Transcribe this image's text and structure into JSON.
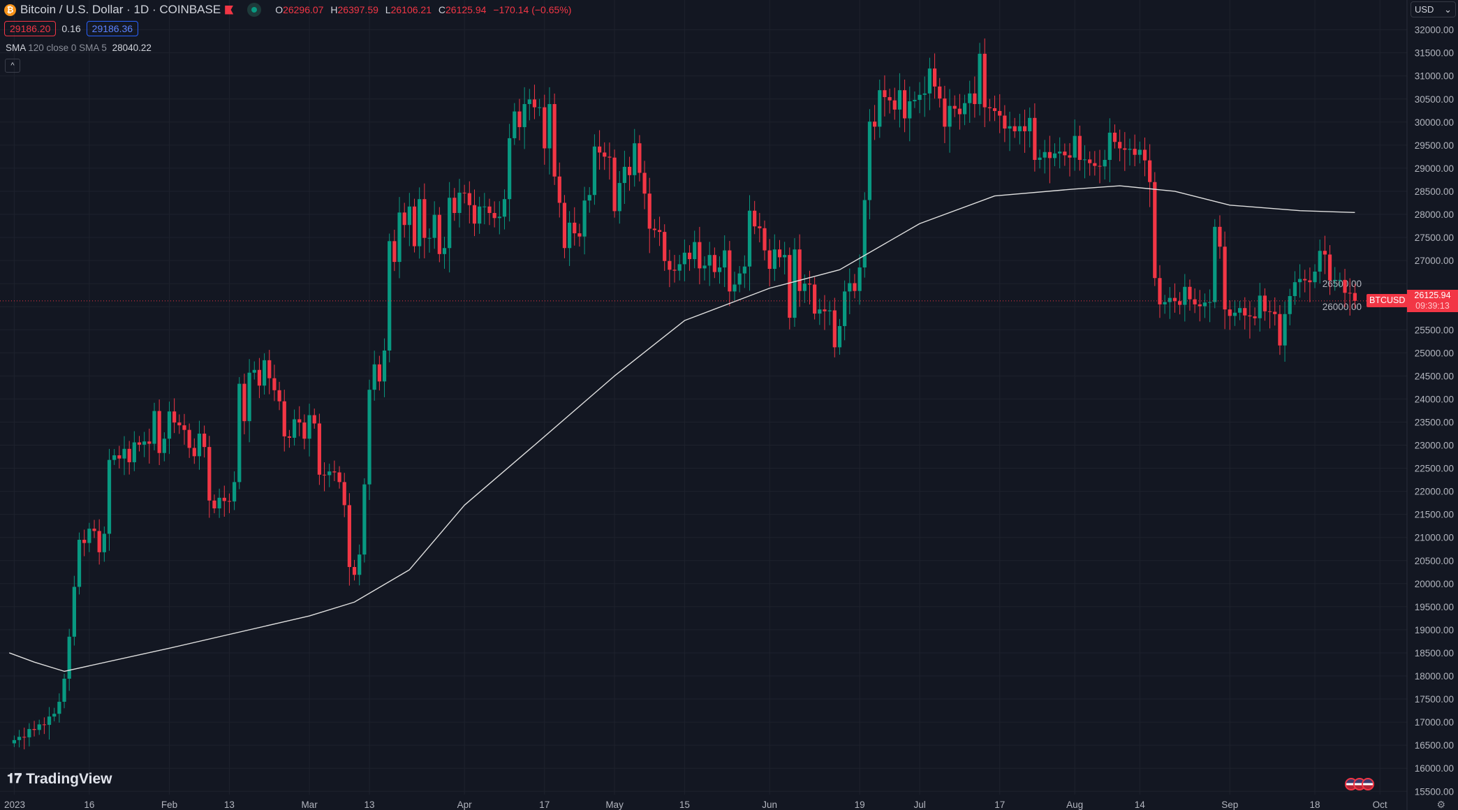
{
  "header": {
    "title": "Bitcoin / U.S. Dollar · 1D · COINBASE",
    "coin_icon": "₿",
    "o_label": "O",
    "o": "26296.07",
    "h_label": "H",
    "h": "26397.59",
    "l_label": "L",
    "l": "26106.21",
    "c_label": "C",
    "c": "26125.94",
    "change": "−170.14 (−0.65%)"
  },
  "bid": "29186.20",
  "spread": "0.16",
  "ask": "29186.36",
  "indicator": {
    "name": "SMA",
    "params": "120 close 0 SMA 5",
    "value": "28040.22"
  },
  "collapse_icon": "^",
  "currency": "USD",
  "symbol_tag": "BTCUSD",
  "last_price": "26125.94",
  "countdown": "09:39:13",
  "logo": "TradingView",
  "colors": {
    "up": "#089981",
    "down": "#f23645",
    "bg": "#131722",
    "grid": "#1e222d",
    "sma": "#e0e0e0"
  },
  "chart_data": {
    "type": "candlestick",
    "title": "Bitcoin / U.S. Dollar · 1D · COINBASE",
    "start_date": "2023-01-01",
    "ylim": [
      15500,
      32000
    ],
    "y_ticks": [
      "15500.00",
      "16000.00",
      "16500.00",
      "17000.00",
      "17500.00",
      "18000.00",
      "18500.00",
      "19000.00",
      "19500.00",
      "20000.00",
      "20500.00",
      "21000.00",
      "21500.00",
      "22000.00",
      "22500.00",
      "23000.00",
      "23500.00",
      "24000.00",
      "24500.00",
      "25000.00",
      "25500.00",
      "26000.00",
      "26500.00",
      "27000.00",
      "27500.00",
      "28000.00",
      "28500.00",
      "29000.00",
      "29500.00",
      "30000.00",
      "30500.00",
      "31000.00",
      "31500.00",
      "32000.00"
    ],
    "x_ticks": [
      {
        "label": "2023",
        "day": 0
      },
      {
        "label": "16",
        "day": 15
      },
      {
        "label": "Feb",
        "day": 31
      },
      {
        "label": "13",
        "day": 43
      },
      {
        "label": "Mar",
        "day": 59
      },
      {
        "label": "13",
        "day": 71
      },
      {
        "label": "Apr",
        "day": 90
      },
      {
        "label": "17",
        "day": 106
      },
      {
        "label": "May",
        "day": 120
      },
      {
        "label": "15",
        "day": 134
      },
      {
        "label": "Jun",
        "day": 151
      },
      {
        "label": "19",
        "day": 169
      },
      {
        "label": "Jul",
        "day": 181
      },
      {
        "label": "17",
        "day": 197
      },
      {
        "label": "Aug",
        "day": 212
      },
      {
        "label": "14",
        "day": 225
      },
      {
        "label": "Sep",
        "day": 243
      },
      {
        "label": "18",
        "day": 260
      },
      {
        "label": "Oct",
        "day": 273
      }
    ],
    "first_open": 16540,
    "close": [
      16610,
      16680,
      16670,
      16850,
      16830,
      16950,
      16940,
      17120,
      17180,
      17440,
      17940,
      18850,
      19930,
      20950,
      20880,
      21190,
      21140,
      20680,
      21080,
      22680,
      22780,
      22710,
      22920,
      22630,
      23060,
      23010,
      23080,
      23030,
      23740,
      22830,
      23140,
      23730,
      23490,
      23430,
      23330,
      22940,
      22760,
      23250,
      22960,
      21800,
      21630,
      21860,
      21790,
      21780,
      22200,
      24330,
      23520,
      24570,
      24630,
      24290,
      24840,
      24450,
      24190,
      23950,
      23190,
      23160,
      23560,
      23490,
      23140,
      23650,
      23470,
      22360,
      22350,
      22430,
      22410,
      22200,
      21700,
      20360,
      20190,
      20630,
      22150,
      24200,
      24750,
      24380,
      25050,
      27420,
      26970,
      28040,
      27770,
      28170,
      27310,
      28330,
      27490,
      27490,
      27990,
      27140,
      27270,
      28360,
      28030,
      28470,
      28460,
      28200,
      27800,
      28170,
      28170,
      28030,
      27920,
      27950,
      28330,
      29650,
      30230,
      29890,
      30390,
      30490,
      30320,
      30320,
      29430,
      30390,
      28820,
      28250,
      27270,
      27820,
      27590,
      27520,
      28300,
      28420,
      29470,
      29340,
      29250,
      29230,
      28070,
      28680,
      29030,
      28850,
      29540,
      28900,
      28450,
      27690,
      27660,
      27620,
      26990,
      26800,
      26780,
      26920,
      27170,
      27030,
      27400,
      26830,
      26890,
      27120,
      26750,
      26850,
      27220,
      26330,
      26480,
      26720,
      26870,
      28080,
      27740,
      27700,
      27220,
      26820,
      27240,
      27070,
      27120,
      25760,
      27240,
      26340,
      26500,
      26480,
      25850,
      25940,
      25900,
      25920,
      25120,
      25580,
      26330,
      26510,
      26340,
      26850,
      28310,
      30010,
      29900,
      30690,
      30540,
      30470,
      30270,
      30690,
      30080,
      30450,
      30480,
      30590,
      30620,
      31160,
      30770,
      30510,
      29900,
      30350,
      30290,
      30170,
      30410,
      30620,
      30390,
      31480,
      30320,
      30300,
      30240,
      30140,
      29860,
      29910,
      29800,
      29910,
      29800,
      30090,
      29180,
      29230,
      29350,
      29220,
      29320,
      29360,
      29280,
      29230,
      29700,
      29180,
      29190,
      29110,
      29050,
      29040,
      29180,
      29770,
      29570,
      29430,
      29400,
      29420,
      29290,
      29400,
      29170,
      28700,
      26620,
      26050,
      26100,
      26190,
      26120,
      26040,
      26430,
      26160,
      26050,
      26010,
      26090,
      26100,
      27730,
      27300,
      25940,
      25800,
      25870,
      25970,
      25810,
      25790,
      25750,
      26240,
      25900,
      25890,
      25840,
      25160,
      25840,
      26230,
      26530,
      26600,
      26570,
      26530,
      26760,
      27210,
      27130,
      26570,
      26580,
      26580,
      26300,
      26296,
      26126
    ],
    "sma120": {
      "name": "SMA 120",
      "points": [
        [
          -1,
          18500
        ],
        [
          4,
          18300
        ],
        [
          10,
          18100
        ],
        [
          31,
          18600
        ],
        [
          59,
          19300
        ],
        [
          68,
          19600
        ],
        [
          79,
          20300
        ],
        [
          90,
          21700
        ],
        [
          104,
          23000
        ],
        [
          120,
          24500
        ],
        [
          134,
          25700
        ],
        [
          151,
          26400
        ],
        [
          165,
          26800
        ],
        [
          181,
          27800
        ],
        [
          196,
          28400
        ],
        [
          212,
          28550
        ],
        [
          221,
          28620
        ],
        [
          232,
          28500
        ],
        [
          243,
          28200
        ],
        [
          257,
          28080
        ],
        [
          268,
          28040
        ]
      ]
    }
  }
}
